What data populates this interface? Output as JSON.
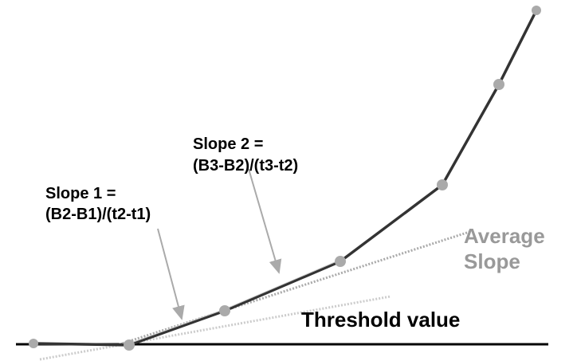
{
  "annotations": {
    "slope_1": {
      "line_1": "Slope 1 =",
      "line_2": "(B2-B1)/(t2-t1)"
    },
    "slope_2": {
      "line_1": "Slope 2 =",
      "line_2": "(B3-B2)/(t3-t2)"
    },
    "average_slope": {
      "line_1": "Average",
      "line_2": "Slope"
    },
    "threshold": "Threshold value"
  }
}
